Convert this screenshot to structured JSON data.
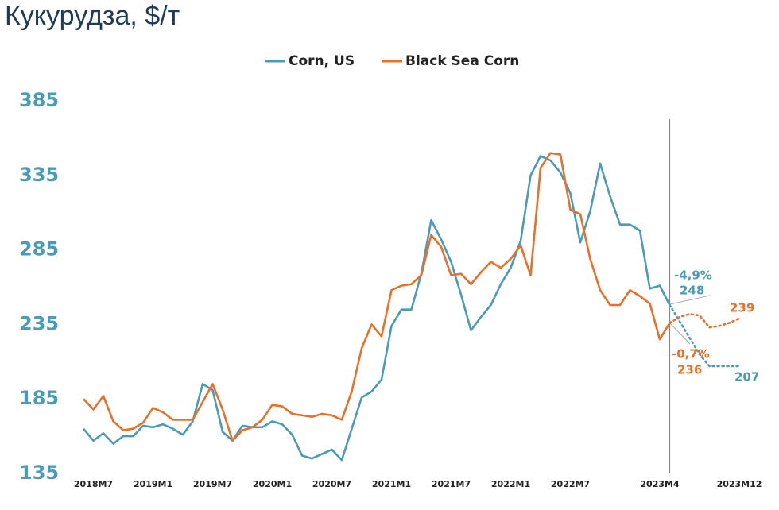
{
  "chart_data": {
    "type": "line",
    "title": "Кукурудза, $/т",
    "categories": [
      null,
      "2018M7",
      null,
      null,
      null,
      null,
      null,
      "2019M1",
      null,
      null,
      null,
      null,
      null,
      "2019M7",
      null,
      null,
      null,
      null,
      null,
      "2020M1",
      null,
      null,
      null,
      null,
      null,
      "2020M7",
      null,
      null,
      null,
      null,
      null,
      "2021M1",
      null,
      null,
      null,
      null,
      null,
      "2021M7",
      null,
      null,
      null,
      null,
      null,
      "2022M1",
      null,
      null,
      null,
      null,
      null,
      "2022M7",
      null,
      null,
      null,
      null,
      null,
      null,
      null,
      null,
      "2023M4",
      null,
      null,
      null,
      null,
      null,
      null,
      null,
      "2023M12"
    ],
    "series": [
      {
        "name": "Corn, US",
        "color": "#4a9bb8",
        "values": [
          165,
          157,
          162,
          155,
          160,
          160,
          167,
          166,
          168,
          165,
          161,
          170,
          195,
          191,
          163,
          157,
          167,
          166,
          166,
          170,
          168,
          161,
          147,
          145,
          148,
          151,
          144,
          165,
          186,
          190,
          198,
          234,
          245,
          245,
          269,
          305,
          292,
          277,
          255,
          231,
          240,
          248,
          262,
          273,
          291,
          335,
          348,
          345,
          337,
          323,
          290,
          311,
          343,
          321,
          302,
          302,
          298,
          259,
          261,
          248,
          null,
          null,
          null,
          null,
          null,
          null,
          null
        ],
        "forecast_values": [
          null,
          null,
          null,
          null,
          null,
          null,
          null,
          null,
          null,
          null,
          null,
          null,
          null,
          null,
          null,
          null,
          null,
          null,
          null,
          null,
          null,
          null,
          null,
          null,
          null,
          null,
          null,
          null,
          null,
          null,
          null,
          null,
          null,
          null,
          null,
          null,
          null,
          null,
          null,
          null,
          null,
          null,
          null,
          null,
          null,
          null,
          null,
          null,
          null,
          null,
          null,
          null,
          null,
          null,
          null,
          null,
          null,
          null,
          null,
          248,
          237,
          226,
          215,
          207,
          207,
          207,
          207
        ]
      },
      {
        "name": "Black Sea Corn",
        "color": "#e8702a",
        "values": [
          185,
          178,
          187,
          170,
          164,
          165,
          169,
          179,
          176,
          171,
          171,
          171,
          183,
          195,
          178,
          157,
          164,
          166,
          171,
          181,
          180,
          175,
          174,
          173,
          175,
          174,
          171,
          190,
          219,
          235,
          227,
          258,
          261,
          262,
          268,
          295,
          287,
          268,
          269,
          262,
          270,
          277,
          273,
          279,
          288,
          268,
          340,
          350,
          349,
          312,
          309,
          279,
          258,
          248,
          248,
          258,
          254,
          249,
          225,
          236,
          null,
          null,
          null,
          null,
          null,
          null,
          null
        ],
        "forecast_values": [
          null,
          null,
          null,
          null,
          null,
          null,
          null,
          null,
          null,
          null,
          null,
          null,
          null,
          null,
          null,
          null,
          null,
          null,
          null,
          null,
          null,
          null,
          null,
          null,
          null,
          null,
          null,
          null,
          null,
          null,
          null,
          null,
          null,
          null,
          null,
          null,
          null,
          null,
          null,
          null,
          null,
          null,
          null,
          null,
          null,
          null,
          null,
          null,
          null,
          null,
          null,
          null,
          null,
          null,
          null,
          null,
          null,
          null,
          null,
          236,
          240,
          242,
          241,
          233,
          234,
          236,
          239
        ]
      }
    ],
    "ylim": [
      135,
      385
    ],
    "yticks": [
      135,
      185,
      235,
      285,
      335,
      385
    ],
    "grid": false,
    "annotations": [
      {
        "text": "-4,9%",
        "color": "#4a9bb8"
      },
      {
        "text": "248",
        "color": "#4a9bb8"
      },
      {
        "text": "-0,7%",
        "color": "#e8702a"
      },
      {
        "text": "236",
        "color": "#e8702a"
      },
      {
        "text": "207",
        "color": "#4a9bb8"
      },
      {
        "text": "239",
        "color": "#e8702a"
      }
    ]
  }
}
